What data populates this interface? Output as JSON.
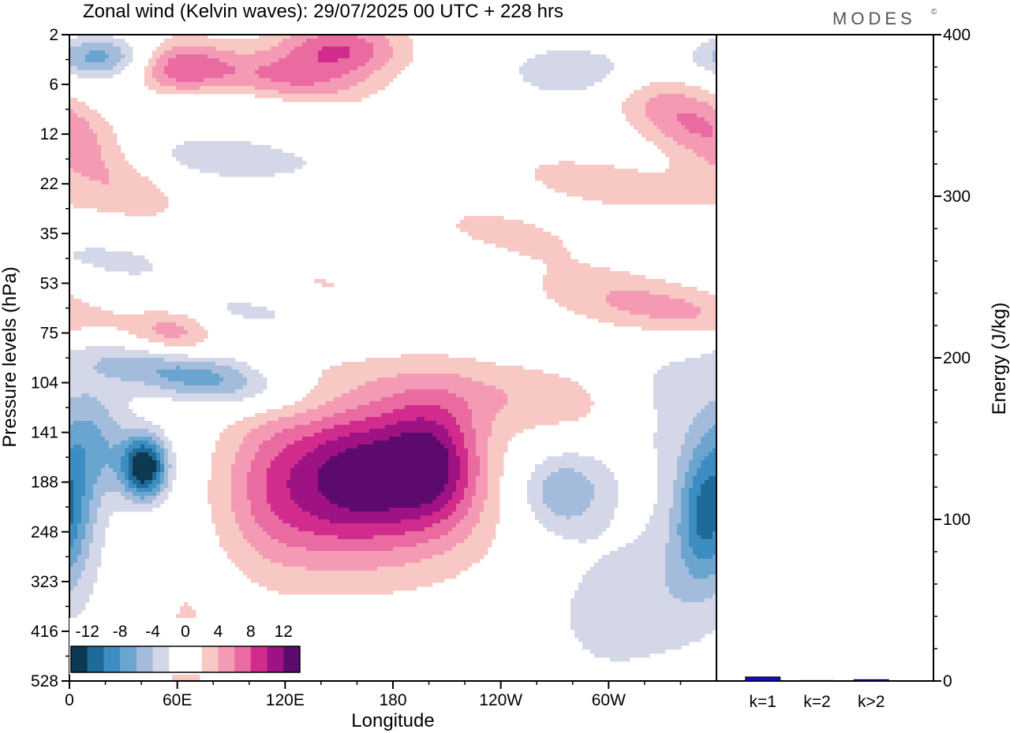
{
  "chart_data": [
    {
      "type": "heatmap",
      "title": "Zonal wind (Kelvin waves):  29/07/2025  00 UTC  + 228 hrs",
      "xlabel": "Longitude",
      "ylabel": "Pressure levels (hPa)",
      "x_ticks": [
        "0",
        "60E",
        "120E",
        "180",
        "120W",
        "60W"
      ],
      "y_ticks": [
        "2",
        "6",
        "12",
        "22",
        "35",
        "53",
        "75",
        "104",
        "141",
        "188",
        "248",
        "323",
        "416",
        "528"
      ],
      "colorbar": {
        "tick_labels": [
          "-12",
          "-8",
          "-4",
          "0",
          "4",
          "8",
          "12"
        ],
        "levels": [
          -14,
          -12,
          -10,
          -8,
          -6,
          -4,
          -2,
          0,
          2,
          4,
          6,
          8,
          10,
          12,
          14
        ],
        "colors": [
          "#0d3a52",
          "#1e6a99",
          "#3c8ec2",
          "#6aa5cf",
          "#a4bcdb",
          "#d4d7e8",
          "#ffffff",
          "#ffffff",
          "#f8c8c4",
          "#f59ab4",
          "#ea6aa2",
          "#d22b8e",
          "#9e1283",
          "#5c0a6e"
        ]
      },
      "anomalies": [
        {
          "lon": 42,
          "lev": 8.7,
          "amp": -14.5,
          "lon_width": 9,
          "lev_width": 0.45,
          "tilt": 0
        },
        {
          "lon": 13,
          "lev": 8.2,
          "amp": -6,
          "lon_width": 15,
          "lev_width": 0.8,
          "tilt": 0
        },
        {
          "lon": 65,
          "lev": 6.8,
          "amp": -8,
          "lon_width": 32,
          "lev_width": 0.45,
          "tilt": 2.5
        },
        {
          "lon": 90,
          "lev": 5.5,
          "amp": -3,
          "lon_width": 40,
          "lev_width": 0.4,
          "tilt": 2.5
        },
        {
          "lon": 30,
          "lev": 4.5,
          "amp": -2.5,
          "lon_width": 45,
          "lev_width": 0.4,
          "tilt": 2.5
        },
        {
          "lon": 75,
          "lev": 2.5,
          "amp": -3,
          "lon_width": 60,
          "lev_width": 0.4,
          "tilt": 2.2
        },
        {
          "lon": 130,
          "lev": 1.5,
          "amp": -3,
          "lon_width": 60,
          "lev_width": 0.35,
          "tilt": 2.2
        },
        {
          "lon": 18,
          "lev": 0.45,
          "amp": -7,
          "lon_width": 20,
          "lev_width": 0.3,
          "tilt": 0
        },
        {
          "lon": 290,
          "lev": 0.7,
          "amp": -5,
          "lon_width": 30,
          "lev_width": 0.4,
          "tilt": 0
        },
        {
          "lon": 355,
          "lev": 9.6,
          "amp": -9,
          "lon_width": 12,
          "lev_width": 0.9,
          "tilt": 0
        },
        {
          "lon": 275,
          "lev": 9.2,
          "amp": -6,
          "lon_width": 18,
          "lev_width": 0.6,
          "tilt": 0
        },
        {
          "lon": 332,
          "lev": 7.5,
          "amp": -4,
          "lon_width": 25,
          "lev_width": 0.8,
          "tilt": 0
        },
        {
          "lon": 300,
          "lev": 11.6,
          "amp": -3,
          "lon_width": 25,
          "lev_width": 1.0,
          "tilt": 0
        },
        {
          "lon": 345,
          "lev": 10.8,
          "amp": -3,
          "lon_width": 22,
          "lev_width": 1.2,
          "tilt": 0
        },
        {
          "lon": 115,
          "lev": 9.0,
          "amp": 6,
          "lon_width": 22,
          "lev_width": 1.2,
          "tilt": 0
        },
        {
          "lon": 158,
          "lev": 8.8,
          "amp": 9,
          "lon_width": 22,
          "lev_width": 1.0,
          "tilt": 0
        },
        {
          "lon": 200,
          "lev": 8.6,
          "amp": 11,
          "lon_width": 20,
          "lev_width": 0.9,
          "tilt": 0
        },
        {
          "lon": 175,
          "lev": 9.6,
          "amp": 4,
          "lon_width": 50,
          "lev_width": 1.2,
          "tilt": 0
        },
        {
          "lon": 255,
          "lev": 7.3,
          "amp": 3.5,
          "lon_width": 60,
          "lev_width": 0.6,
          "tilt": 2.5
        },
        {
          "lon": 330,
          "lev": 5.5,
          "amp": 5,
          "lon_width": 40,
          "lev_width": 0.5,
          "tilt": 2.5
        },
        {
          "lon": 58,
          "lev": 6.0,
          "amp": 5,
          "lon_width": 18,
          "lev_width": 0.45,
          "tilt": 0
        },
        {
          "lon": 355,
          "lev": 2.0,
          "amp": 7,
          "lon_width": 25,
          "lev_width": 1.0,
          "tilt": 1.5
        },
        {
          "lon": 300,
          "lev": 3.0,
          "amp": 3,
          "lon_width": 40,
          "lev_width": 0.5,
          "tilt": 2.5
        },
        {
          "lon": 60,
          "lev": 0.7,
          "amp": 6,
          "lon_width": 18,
          "lev_width": 0.4,
          "tilt": 0
        },
        {
          "lon": 150,
          "lev": 0.3,
          "amp": 8,
          "lon_width": 25,
          "lev_width": 0.4,
          "tilt": 0
        },
        {
          "lon": 120,
          "lev": 1.0,
          "amp": 6,
          "lon_width": 35,
          "lev_width": 0.5,
          "tilt": 2.5
        },
        {
          "lon": 65,
          "lev": 12.8,
          "amp": 3.5,
          "lon_width": 8,
          "lev_width": 1.2,
          "tilt": 0
        },
        {
          "lon": 130,
          "lev": 5.0,
          "amp": 2.5,
          "lon_width": 40,
          "lev_width": 0.4,
          "tilt": 2.5
        },
        {
          "lon": 245,
          "lev": 4.0,
          "amp": 2.5,
          "lon_width": 35,
          "lev_width": 0.5,
          "tilt": 2.5
        }
      ]
    },
    {
      "type": "bar",
      "categories": [
        "k=1",
        "k=2",
        "k>2"
      ],
      "values": [
        2.5,
        0.3,
        0.8
      ],
      "ylabel": "Energy (J/kg)",
      "y_ticks": [
        "0",
        "100",
        "200",
        "300",
        "400"
      ],
      "ylim": [
        0,
        400
      ],
      "bar_colors": [
        "#1010c0",
        "#1010c0",
        "#1010c0"
      ]
    }
  ],
  "brand": {
    "text": "MODES",
    "mark": "©"
  }
}
